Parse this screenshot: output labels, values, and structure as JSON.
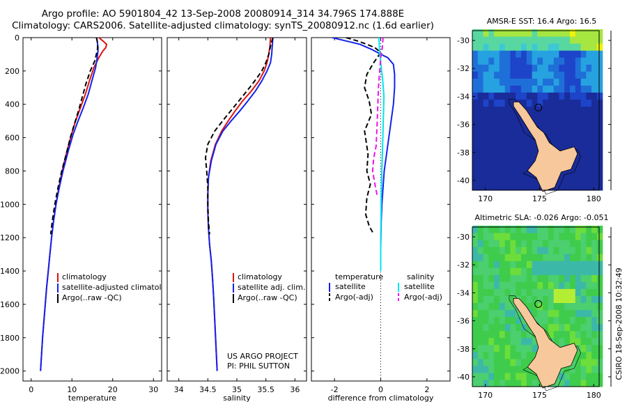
{
  "header": {
    "line1": "Argo profile: AO 5901804_42 13-Sep-2008 20080914_314 34.796S 174.888E",
    "line2": "Climatology: CARS2006. Satellite-adjusted climatology: synTS_20080912.nc (1.6d earlier)"
  },
  "credit": {
    "project": "US ARGO PROJECT",
    "pi": "PI: PHIL SUTTON",
    "stamp": "CSIRO 18-Sep-2008 10:32:49"
  },
  "colors": {
    "climatology": "#dd1111",
    "satellite": "#1122ee",
    "argo": "#000000",
    "salinity_satellite": "#00e5ee",
    "salinity_argo": "#ee11ee",
    "land": "#f7c89b"
  },
  "chart_data": [
    {
      "type": "line",
      "xlabel": "temperature",
      "ylabel": "",
      "xlim": [
        -2,
        32
      ],
      "ylim": [
        2060,
        0
      ],
      "xticks": [
        "0",
        "10",
        "20",
        "30"
      ],
      "yticks": [
        "0",
        "200",
        "400",
        "600",
        "800",
        "1000",
        "1200",
        "1400",
        "1600",
        "1800",
        "2000"
      ],
      "legend": [
        "climatology",
        "satellite-adjusted climatology",
        "Argo(..raw -QC)"
      ],
      "series": [
        {
          "name": "climatology",
          "style": "solid",
          "color": "#dd1111",
          "x": [
            16.6,
            17.6,
            18.5,
            18.3,
            17.6,
            16.6,
            15.4,
            14.3,
            13.3,
            12.1,
            10.9,
            9.9,
            8.8,
            7.6,
            6.8,
            6.1,
            5.5,
            5.0,
            4.6,
            4.2,
            3.8,
            3.3,
            2.8,
            2.3
          ],
          "y": [
            0,
            20,
            40,
            60,
            80,
            120,
            180,
            260,
            340,
            420,
            500,
            580,
            680,
            800,
            900,
            1000,
            1100,
            1200,
            1300,
            1400,
            1500,
            1650,
            1800,
            2000
          ]
        },
        {
          "name": "satellite-adjusted climatology",
          "style": "solid",
          "color": "#1122ee",
          "x": [
            16.0,
            16.2,
            16.3,
            16.4,
            16.4,
            16.2,
            15.8,
            14.9,
            14.0,
            12.8,
            11.5,
            10.3,
            9.1,
            7.8,
            6.9,
            6.1,
            5.5,
            5.0,
            4.6,
            4.2,
            3.8,
            3.3,
            2.8,
            2.3
          ],
          "y": [
            0,
            20,
            40,
            60,
            80,
            120,
            180,
            260,
            340,
            420,
            500,
            580,
            680,
            800,
            900,
            1000,
            1100,
            1200,
            1300,
            1400,
            1500,
            1650,
            1800,
            2000
          ]
        },
        {
          "name": "Argo(..raw -QC)",
          "style": "dashed",
          "color": "#000000",
          "x": [
            16.0,
            16.2,
            16.3,
            16.3,
            16.2,
            15.6,
            14.5,
            13.4,
            12.5,
            11.6,
            10.6,
            9.6,
            8.6,
            7.5,
            6.6,
            5.8,
            5.2,
            4.8
          ],
          "y": [
            0,
            20,
            40,
            60,
            80,
            140,
            200,
            280,
            360,
            440,
            520,
            600,
            700,
            800,
            900,
            1000,
            1100,
            1180
          ]
        }
      ]
    },
    {
      "type": "line",
      "xlabel": "salinity",
      "ylabel": "",
      "xlim": [
        33.8,
        36.2
      ],
      "ylim": [
        2060,
        0
      ],
      "xticks": [
        "34",
        "34.5",
        "35",
        "35.5",
        "36"
      ],
      "legend": [
        "climatology",
        "satellite adj. clim.",
        "Argo(..raw -QC)"
      ],
      "series": [
        {
          "name": "climatology",
          "style": "solid",
          "color": "#dd1111",
          "x": [
            35.58,
            35.57,
            35.55,
            35.52,
            35.47,
            35.38,
            35.25,
            35.1,
            34.97,
            34.85,
            34.74,
            34.63,
            34.55,
            34.51,
            34.5,
            34.5,
            34.51,
            34.53,
            34.56,
            34.58,
            34.6,
            34.62,
            34.64,
            34.66
          ],
          "y": [
            0,
            50,
            100,
            150,
            200,
            260,
            320,
            380,
            440,
            500,
            560,
            640,
            740,
            840,
            940,
            1040,
            1140,
            1240,
            1340,
            1440,
            1560,
            1700,
            1850,
            2000
          ]
        },
        {
          "name": "satellite adj. clim.",
          "style": "solid",
          "color": "#1122ee",
          "x": [
            35.62,
            35.61,
            35.6,
            35.58,
            35.52,
            35.43,
            35.32,
            35.19,
            35.05,
            34.9,
            34.76,
            34.64,
            34.56,
            34.51,
            34.5,
            34.5,
            34.51,
            34.53,
            34.56,
            34.58,
            34.6,
            34.62,
            34.64,
            34.66
          ],
          "y": [
            0,
            50,
            100,
            150,
            200,
            260,
            320,
            380,
            440,
            500,
            560,
            640,
            740,
            840,
            940,
            1040,
            1140,
            1240,
            1340,
            1440,
            1560,
            1700,
            1850,
            2000
          ]
        },
        {
          "name": "Argo(..raw -QC)",
          "style": "dashed",
          "color": "#000000",
          "x": [
            35.62,
            35.58,
            35.55,
            35.5,
            35.43,
            35.35,
            35.22,
            35.08,
            34.94,
            34.8,
            34.62,
            34.5,
            34.46,
            34.48,
            34.5,
            34.5,
            34.51,
            34.53
          ],
          "y": [
            0,
            50,
            100,
            150,
            200,
            240,
            300,
            360,
            420,
            480,
            560,
            640,
            720,
            800,
            900,
            1000,
            1100,
            1180
          ]
        }
      ]
    },
    {
      "type": "line",
      "xlabel": "difference from climatology",
      "ylabel": "",
      "xlim": [
        -3,
        3
      ],
      "ylim": [
        2060,
        0
      ],
      "xticks": [
        "-2",
        "0",
        "2"
      ],
      "legend_groups": [
        {
          "title": "temperature",
          "entries": [
            "satellite",
            "Argo(-adj)"
          ]
        },
        {
          "title": "salinity",
          "entries": [
            "satellite",
            "Argo(-adj)"
          ]
        }
      ],
      "zero_line": 0,
      "series": [
        {
          "name": "temperature satellite",
          "style": "solid",
          "color": "#1122ee",
          "x": [
            -2.1,
            -1.5,
            -0.9,
            -0.4,
            0.0,
            0.3,
            0.55,
            0.6,
            0.6,
            0.55,
            0.45,
            0.35,
            0.25,
            0.15,
            0.1,
            0.05,
            0.02,
            0.0,
            0.0
          ],
          "y": [
            0,
            20,
            40,
            70,
            100,
            120,
            160,
            220,
            300,
            400,
            500,
            600,
            700,
            800,
            900,
            1000,
            1100,
            1250,
            1400
          ]
        },
        {
          "name": "temperature Argo(-adj)",
          "style": "dashed",
          "color": "#000000",
          "x": [
            -1.5,
            -1.0,
            -0.6,
            -0.25,
            0.0,
            -0.3,
            -0.6,
            -0.7,
            -0.5,
            -0.4,
            -0.7,
            -0.55,
            -0.6,
            -0.45,
            -0.6,
            -0.65,
            -0.5,
            -0.3
          ],
          "y": [
            0,
            20,
            40,
            60,
            90,
            150,
            220,
            300,
            380,
            460,
            560,
            700,
            800,
            880,
            960,
            1060,
            1130,
            1180
          ]
        },
        {
          "name": "salinity satellite",
          "style": "solid",
          "color": "#00e5ee",
          "x": [
            -0.08,
            -0.06,
            -0.04,
            0.0,
            0.08,
            0.14,
            0.12,
            0.1,
            0.08,
            0.06,
            0.04,
            0.02,
            0.01,
            0.0,
            0.0
          ],
          "y": [
            0,
            50,
            100,
            150,
            250,
            350,
            450,
            550,
            650,
            750,
            850,
            950,
            1100,
            1250,
            1400
          ]
        },
        {
          "name": "salinity Argo(-adj)",
          "style": "dashed",
          "color": "#ee11ee",
          "x": [
            0.1,
            0.08,
            0.05,
            0.0,
            -0.1,
            -0.15,
            -0.2,
            -0.3,
            -0.35,
            -0.25,
            -0.15
          ],
          "y": [
            0,
            40,
            80,
            120,
            300,
            500,
            650,
            720,
            800,
            880,
            950
          ]
        }
      ]
    },
    {
      "type": "heatmap",
      "title": "AMSR-E SST: 16.4 Argo: 16.5",
      "xticks": [
        "170",
        "175",
        "180"
      ],
      "yticks": [
        "-30",
        "-32",
        "-34",
        "-36",
        "-38",
        "-40"
      ],
      "xlim": [
        168.8,
        180.5
      ],
      "ylim": [
        -40.7,
        -29.3
      ],
      "marker": {
        "lon": 174.888,
        "lat": -34.796
      }
    },
    {
      "type": "heatmap",
      "title": "Altimetric SLA: -0.026 Argo: -0.051",
      "xticks": [
        "170",
        "175",
        "180"
      ],
      "yticks": [
        "-30",
        "-32",
        "-34",
        "-36",
        "-38",
        "-40"
      ],
      "xlim": [
        168.8,
        180.5
      ],
      "ylim": [
        -40.7,
        -29.3
      ],
      "marker": {
        "lon": 174.888,
        "lat": -34.796
      }
    }
  ]
}
